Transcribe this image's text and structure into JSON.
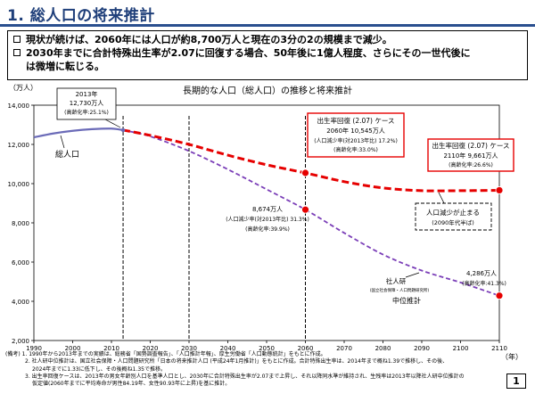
{
  "header": {
    "title": "1. 総人口の将来推計"
  },
  "summary": {
    "line1": "現状が続けば、2060年には人口が約8,700万人と現在の3分の2の規模まで減少。",
    "line2a": "2030年までに合計特殊出生率が2.07に回復する場合、50年後に1億人程度、さらにその一世代後に",
    "line2b": "は微増に転じる。"
  },
  "chart_data": {
    "type": "line",
    "title": "長期的な人口（総人口）の推移と将来推計",
    "ylabel": "（万人）",
    "xlabel": "（年）",
    "xlim": [
      1990,
      2110
    ],
    "ylim": [
      2000,
      14000
    ],
    "x_ticks": [
      1990,
      2000,
      2010,
      2020,
      2030,
      2040,
      2050,
      2060,
      2070,
      2080,
      2090,
      2100,
      2110
    ],
    "y_ticks": [
      2000,
      4000,
      6000,
      8000,
      10000,
      12000,
      14000
    ],
    "y_tick_labels": [
      "2,000",
      "4,000",
      "6,000",
      "8,000",
      "10,000",
      "12,000",
      "14,000"
    ],
    "reference_years": [
      2013,
      2030,
      2060
    ],
    "grid": false,
    "series": [
      {
        "name": "総人口",
        "style": "solid",
        "color": "#6b6bb8",
        "points": [
          [
            1990,
            12361
          ],
          [
            1995,
            12557
          ],
          [
            2000,
            12693
          ],
          [
            2005,
            12777
          ],
          [
            2010,
            12806
          ],
          [
            2013,
            12730
          ]
        ]
      },
      {
        "name": "中位推計",
        "style": "dashed",
        "color": "#7b3fb8",
        "points": [
          [
            2013,
            12730
          ],
          [
            2020,
            12410
          ],
          [
            2030,
            11662
          ],
          [
            2040,
            10728
          ],
          [
            2050,
            9708
          ],
          [
            2060,
            8674
          ],
          [
            2070,
            7486
          ],
          [
            2080,
            6386
          ],
          [
            2090,
            5568
          ],
          [
            2100,
            4959
          ],
          [
            2110,
            4286
          ]
        ]
      },
      {
        "name": "出生率回復(2.07)ケース",
        "style": "dashed",
        "color": "#e60000",
        "points": [
          [
            2013,
            12730
          ],
          [
            2020,
            12460
          ],
          [
            2030,
            12000
          ],
          [
            2040,
            11450
          ],
          [
            2050,
            10960
          ],
          [
            2060,
            10545
          ],
          [
            2070,
            10100
          ],
          [
            2080,
            9780
          ],
          [
            2090,
            9640
          ],
          [
            2100,
            9640
          ],
          [
            2110,
            9661
          ]
        ]
      }
    ],
    "markers": [
      {
        "series": "出生率回復(2.07)ケース",
        "x": 2060,
        "y": 10545
      },
      {
        "series": "出生率回復(2.07)ケース",
        "x": 2110,
        "y": 9661
      },
      {
        "series": "中位推計",
        "x": 2060,
        "y": 8674
      },
      {
        "series": "中位推計",
        "x": 2110,
        "y": 4286
      }
    ],
    "annotations": {
      "a2013": {
        "l1": "2013年",
        "l2": "12,730万人",
        "l3": "(高齢化率:25.1%)"
      },
      "a2060_high": {
        "l1": "出生率回復 (2.07) ケース",
        "l2": "2060年 10,545万人",
        "l3": "(人口減少率(対2013年比) 17.2%)",
        "l4": "(高齢化率:33.0%)"
      },
      "a2110_high": {
        "l1": "出生率回復 (2.07) ケース",
        "l2": "2110年 9,661万人",
        "l3": "(高齢化率:26.6%)"
      },
      "a2060_mid": {
        "l1": "8,674万人",
        "l2": "(人口減少率(対2013年比) 31.3%)",
        "l3": "(高齢化率:39.9%)"
      },
      "a2110_mid": {
        "l1": "4,286万人",
        "l2": "(高齢化率:41.3%)"
      },
      "stop": {
        "l1": "人口減少が止まる",
        "l2": "(2090年代半ば)"
      },
      "shajin": {
        "l1": "社人研",
        "l2": "(国立社会保障・人口問題研究所)",
        "l3": "中位推計"
      },
      "total": "総人口"
    },
    "accent_red": "#e60000",
    "accent_purple": "#7b3fb8"
  },
  "notes": [
    "(備考) 1. 1990年から2013年までの実績は、総務省「国勢調査報告」、「人口推計年報」、厚生労働省「人口動態統計」をもとに作成。",
    "2. 社人研中位推計は、国立社会保障・人口問題研究所「日本の将来推計人口 (平成24年1月推計)」をもとに作成。合計特殊出生率は、2014年まで概ね1.39で推移し、その後、",
    "2024年までに1.33に低下し、その後概ね1.35で推移。",
    "3. 出生率回復ケースは、2013年の男女年齢別人口を基準人口とし、2030年に合計特殊出生率が2.07まで上昇し、それ以降同水準が維持され、生残率は2013年以降社人研中位推計の",
    "仮定値(2060年までに平均寿命が男性84.19年、女性90.93年に上昇)を基に推計。"
  ],
  "page_number": "1"
}
